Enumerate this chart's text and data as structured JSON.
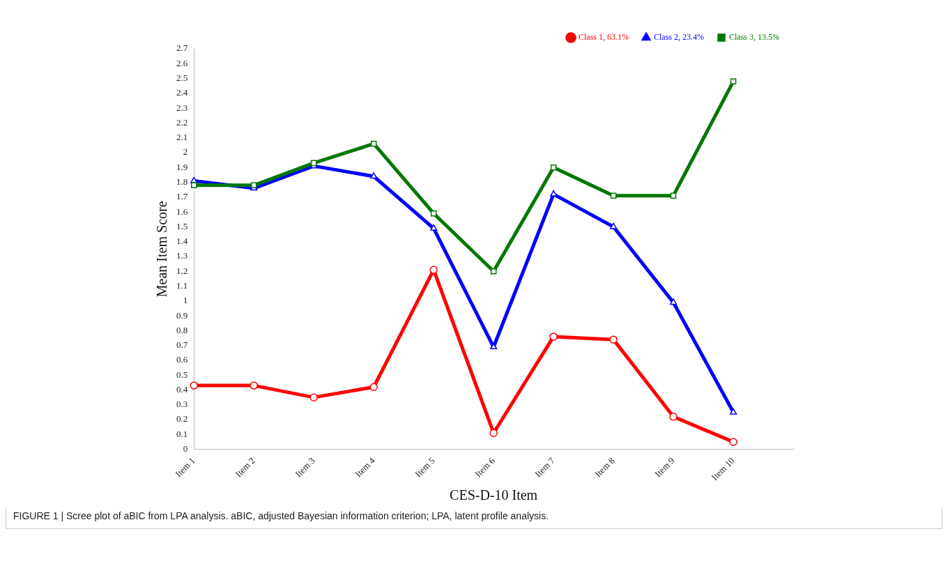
{
  "chart_data": {
    "type": "line",
    "xlabel": "CES-D-10 Item",
    "ylabel": "Mean Item Score",
    "categories": [
      "Item 1",
      "Item 2",
      "Item 3",
      "Item 4",
      "Item 5",
      "Item 6",
      "Item 7",
      "Item 8",
      "Item 9",
      "Item 10",
      null
    ],
    "series": [
      {
        "name": "Class 1, 63.1%",
        "color": "#ff0000",
        "marker": "circle",
        "values": [
          0.43,
          0.43,
          0.35,
          0.42,
          1.21,
          0.11,
          0.76,
          0.74,
          0.22,
          0.05,
          null
        ]
      },
      {
        "name": "Class 2, 23.4%",
        "color": "#0000ff",
        "marker": "triangle",
        "values": [
          1.81,
          1.76,
          1.91,
          1.84,
          1.49,
          0.69,
          1.72,
          1.5,
          0.99,
          0.25,
          null
        ]
      },
      {
        "name": "Class 3, 13.5%",
        "color": "#007800",
        "marker": "square",
        "values": [
          1.78,
          1.78,
          1.93,
          2.06,
          1.59,
          1.2,
          1.9,
          1.71,
          1.71,
          2.48,
          null
        ]
      }
    ],
    "ylim": [
      0,
      2.7
    ],
    "yticks": [
      0,
      0.1,
      0.2,
      0.3,
      0.4,
      0.5,
      0.6,
      0.7,
      0.8,
      0.9,
      1,
      1.1,
      1.2,
      1.3,
      1.4,
      1.5,
      1.6,
      1.7,
      1.8,
      1.9,
      2,
      2.1,
      2.2,
      2.3,
      2.4,
      2.5,
      2.6,
      2.7
    ],
    "grid": false,
    "legend": "top right",
    "line_style": "solid",
    "annotations": [
      "FIGURE 1 | Scree plot of aBIC from LPA analysis. aBIC, adjusted Bayesian information criterion; LPA, latent profile analysis."
    ]
  }
}
